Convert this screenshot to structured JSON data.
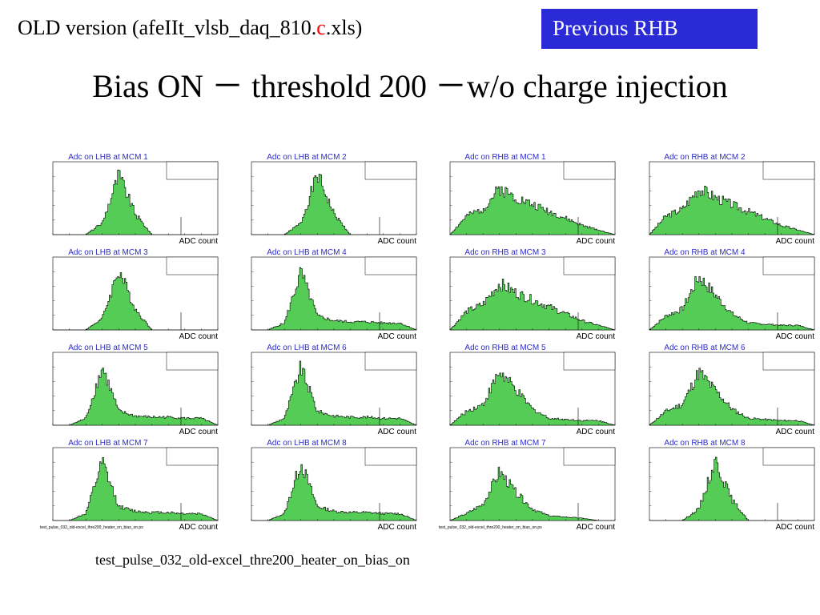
{
  "header": {
    "label_prefix": "OLD version (afeIIt_vlsb_daq_810.",
    "label_red": "c",
    "label_suffix": ".xls)",
    "previous_button": "Previous RHB"
  },
  "slide": {
    "title": "Bias ON － threshold 200 －w/o charge injection",
    "caption": "test_pulse_032_old-excel_thre200_heater_on_bias_on"
  },
  "colors": {
    "fill": "#55cc55",
    "title_text": "#2c2cc8",
    "button": "#2a2ad6"
  },
  "footnotes": {
    "left": "test_pulse_032_old-excel_thre200_heater_on_bias_on.ps",
    "right": "test_pulse_032_old-excel_thre200_heater_on_bias_on.ps"
  },
  "chart_data": [
    {
      "type": "area",
      "title": "Adc on LHB at MCM 1",
      "xlabel": "ADC count",
      "shape": "A",
      "x": [
        0,
        1,
        2,
        3,
        4,
        5,
        6,
        7,
        8,
        9,
        10
      ],
      "y": [
        0,
        0,
        0,
        0.5,
        2.6,
        0.9,
        0,
        0,
        0,
        0,
        0
      ]
    },
    {
      "type": "area",
      "title": "Adc on LHB at MCM 2",
      "xlabel": "ADC count",
      "shape": "A",
      "x": [
        0,
        1,
        2,
        3,
        4,
        5,
        6,
        7,
        8,
        9,
        10
      ],
      "y": [
        0,
        0,
        0,
        0.5,
        2.6,
        0.9,
        0,
        0,
        0,
        0,
        0
      ]
    },
    {
      "type": "area",
      "title": "Adc on RHB at MCM 1",
      "xlabel": "ADC count",
      "shape": "R",
      "x": [
        0,
        1,
        2,
        3,
        4,
        5,
        6,
        7,
        8,
        9,
        10
      ],
      "y": [
        0,
        0.8,
        1.1,
        2.0,
        1.6,
        1.3,
        1.0,
        0.7,
        0.4,
        0.2,
        0
      ]
    },
    {
      "type": "area",
      "title": "Adc on RHB at MCM 2",
      "xlabel": "ADC count",
      "shape": "R",
      "x": [
        0,
        1,
        2,
        3,
        4,
        5,
        6,
        7,
        8,
        9,
        10
      ],
      "y": [
        0,
        0.8,
        1.1,
        2.0,
        1.6,
        1.3,
        1.0,
        0.7,
        0.4,
        0.2,
        0
      ]
    },
    {
      "type": "area",
      "title": "Adc on LHB at MCM 3",
      "xlabel": "ADC count",
      "shape": "A",
      "x": [
        0,
        1,
        2,
        3,
        4,
        5,
        6,
        7,
        8,
        9,
        10
      ],
      "y": [
        0,
        0,
        0,
        0.5,
        2.6,
        0.9,
        0,
        0,
        0,
        0,
        0
      ]
    },
    {
      "type": "area",
      "title": "Adc on LHB at MCM 4",
      "xlabel": "ADC count",
      "shape": "T",
      "x": [
        0,
        1,
        2,
        3,
        4,
        5,
        6,
        7,
        8,
        9,
        10
      ],
      "y": [
        0,
        0,
        0.3,
        2.5,
        0.6,
        0.4,
        0.35,
        0.35,
        0.3,
        0.3,
        0
      ]
    },
    {
      "type": "area",
      "title": "Adc on RHB at MCM 3",
      "xlabel": "ADC count",
      "shape": "R",
      "x": [
        0,
        1,
        2,
        3,
        4,
        5,
        6,
        7,
        8,
        9,
        10
      ],
      "y": [
        0,
        0.8,
        1.1,
        2.0,
        1.6,
        1.3,
        1.0,
        0.7,
        0.4,
        0.2,
        0
      ]
    },
    {
      "type": "area",
      "title": "Adc on RHB at MCM 4",
      "xlabel": "ADC count",
      "shape": "D",
      "x": [
        0,
        1,
        2,
        3,
        4,
        5,
        6,
        7,
        8,
        9,
        10
      ],
      "y": [
        0,
        0.6,
        0.9,
        2.3,
        1.5,
        0.7,
        0.3,
        0.25,
        0.2,
        0.2,
        0
      ]
    },
    {
      "type": "area",
      "title": "Adc on LHB at MCM 5",
      "xlabel": "ADC count",
      "shape": "T",
      "x": [
        0,
        1,
        2,
        3,
        4,
        5,
        6,
        7,
        8,
        9,
        10
      ],
      "y": [
        0,
        0,
        0.3,
        2.5,
        0.6,
        0.4,
        0.35,
        0.35,
        0.3,
        0.3,
        0
      ]
    },
    {
      "type": "area",
      "title": "Adc on LHB at MCM 6",
      "xlabel": "ADC count",
      "shape": "T",
      "x": [
        0,
        1,
        2,
        3,
        4,
        5,
        6,
        7,
        8,
        9,
        10
      ],
      "y": [
        0,
        0,
        0.3,
        2.5,
        0.6,
        0.4,
        0.35,
        0.35,
        0.3,
        0.3,
        0
      ]
    },
    {
      "type": "area",
      "title": "Adc on RHB at MCM 5",
      "xlabel": "ADC count",
      "shape": "D",
      "x": [
        0,
        1,
        2,
        3,
        4,
        5,
        6,
        7,
        8,
        9,
        10
      ],
      "y": [
        0,
        0.6,
        0.9,
        2.3,
        1.5,
        0.7,
        0.3,
        0.25,
        0.2,
        0.2,
        0
      ]
    },
    {
      "type": "area",
      "title": "Adc on RHB at MCM 6",
      "xlabel": "ADC count",
      "shape": "D",
      "x": [
        0,
        1,
        2,
        3,
        4,
        5,
        6,
        7,
        8,
        9,
        10
      ],
      "y": [
        0,
        0.6,
        0.9,
        2.3,
        1.5,
        0.7,
        0.3,
        0.25,
        0.2,
        0.2,
        0
      ]
    },
    {
      "type": "area",
      "title": "Adc on LHB at MCM 7",
      "xlabel": "ADC count",
      "shape": "T",
      "x": [
        0,
        1,
        2,
        3,
        4,
        5,
        6,
        7,
        8,
        9,
        10
      ],
      "y": [
        0,
        0,
        0.3,
        2.5,
        0.6,
        0.4,
        0.35,
        0.35,
        0.3,
        0.3,
        0
      ]
    },
    {
      "type": "area",
      "title": "Adc on LHB at MCM 8",
      "xlabel": "ADC count",
      "shape": "T",
      "x": [
        0,
        1,
        2,
        3,
        4,
        5,
        6,
        7,
        8,
        9,
        10
      ],
      "y": [
        0,
        0,
        0.3,
        2.5,
        0.6,
        0.4,
        0.35,
        0.35,
        0.3,
        0.3,
        0
      ]
    },
    {
      "type": "area",
      "title": "Adc on RHB at MCM 7",
      "xlabel": "ADC count",
      "shape": "S",
      "x": [
        0,
        1,
        2,
        3,
        4,
        5,
        6,
        7,
        8,
        9,
        10
      ],
      "y": [
        0,
        0.3,
        0.7,
        2.1,
        1.2,
        0.5,
        0.2,
        0.15,
        0.1,
        0,
        0
      ]
    },
    {
      "type": "area",
      "title": "Adc on RHB at MCM 8",
      "xlabel": "ADC count",
      "shape": "A",
      "x": [
        0,
        1,
        2,
        3,
        4,
        5,
        6,
        7,
        8,
        9,
        10
      ],
      "y": [
        0,
        0,
        0,
        0.5,
        2.6,
        0.9,
        0,
        0,
        0,
        0,
        0
      ]
    }
  ]
}
